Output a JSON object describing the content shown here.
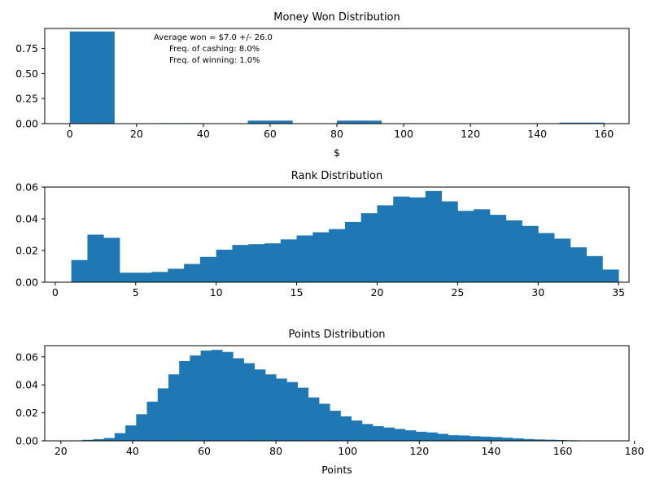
{
  "chart_data": [
    {
      "type": "bar",
      "title": "Money Won Distribution",
      "xlabel": "$",
      "ylabel": "",
      "xlim": [
        -7.5,
        167.5
      ],
      "ylim": [
        0,
        0.95
      ],
      "xticks": [
        0,
        20,
        40,
        60,
        80,
        100,
        120,
        140,
        160
      ],
      "yticks": [
        0.0,
        0.25,
        0.5,
        0.75
      ],
      "ytick_labels": [
        "0.00",
        "0.25",
        "0.50",
        "0.75"
      ],
      "bins": [
        {
          "x0": 0,
          "x1": 13.33,
          "value": 0.92
        },
        {
          "x0": 26.67,
          "x1": 40,
          "value": 0.005
        },
        {
          "x0": 53.33,
          "x1": 66.67,
          "value": 0.03
        },
        {
          "x0": 80,
          "x1": 93.33,
          "value": 0.03
        },
        {
          "x0": 146.67,
          "x1": 160,
          "value": 0.01
        }
      ],
      "annotations": [
        "Average won = $7.0 +/- 26.0",
        "Freq. of cashing: 8.0%",
        "Freq. of winning: 1.0%"
      ],
      "color": "#1f77b4"
    },
    {
      "type": "bar",
      "title": "Rank Distribution",
      "xlabel": "",
      "ylabel": "",
      "xlim": [
        -0.65,
        35.65
      ],
      "ylim": [
        0,
        0.06
      ],
      "xticks": [
        0,
        5,
        10,
        15,
        20,
        25,
        30,
        35
      ],
      "yticks": [
        0.0,
        0.02,
        0.04,
        0.06
      ],
      "ytick_labels": [
        "0.00",
        "0.02",
        "0.04",
        "0.06"
      ],
      "bin_start": 1,
      "bin_width": 1,
      "values": [
        0.014,
        0.03,
        0.028,
        0.006,
        0.006,
        0.0065,
        0.0085,
        0.0115,
        0.016,
        0.0205,
        0.0235,
        0.024,
        0.0245,
        0.027,
        0.0295,
        0.0315,
        0.0335,
        0.038,
        0.0435,
        0.0485,
        0.054,
        0.0535,
        0.0575,
        0.051,
        0.045,
        0.046,
        0.0425,
        0.039,
        0.0355,
        0.031,
        0.0275,
        0.022,
        0.0165,
        0.008
      ],
      "color": "#1f77b4"
    },
    {
      "type": "bar",
      "title": "Points Distribution",
      "xlabel": "Points",
      "ylabel": "",
      "xlim": [
        15.5,
        178.5
      ],
      "ylim": [
        0,
        0.068
      ],
      "xticks": [
        20,
        40,
        60,
        80,
        100,
        120,
        140,
        160,
        180
      ],
      "yticks": [
        0.0,
        0.02,
        0.04,
        0.06
      ],
      "ytick_labels": [
        "0.00",
        "0.02",
        "0.04",
        "0.06"
      ],
      "bin_start": 23,
      "bin_width": 3,
      "values": [
        0.0003,
        0.0007,
        0.0012,
        0.002,
        0.0055,
        0.011,
        0.019,
        0.028,
        0.0375,
        0.0475,
        0.057,
        0.061,
        0.0645,
        0.065,
        0.0635,
        0.059,
        0.0555,
        0.051,
        0.0475,
        0.0445,
        0.042,
        0.038,
        0.031,
        0.0265,
        0.0215,
        0.0175,
        0.0145,
        0.012,
        0.0105,
        0.0095,
        0.0085,
        0.0075,
        0.0065,
        0.006,
        0.005,
        0.004,
        0.0038,
        0.0033,
        0.003,
        0.0027,
        0.0022,
        0.0018,
        0.0013,
        0.001,
        0.0008,
        0.0006,
        0.0004,
        0.0003
      ],
      "color": "#1f77b4"
    }
  ]
}
